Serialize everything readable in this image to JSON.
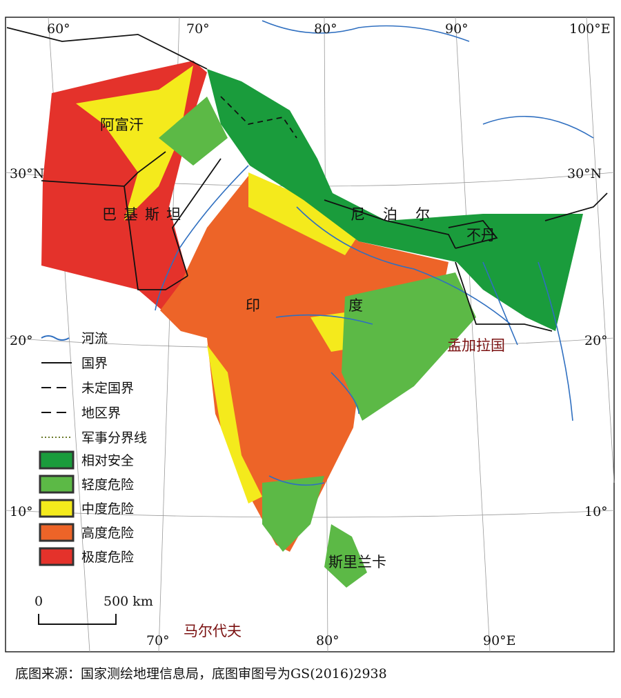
{
  "map": {
    "graticule": {
      "top": [
        "60°",
        "70°",
        "80°",
        "90°",
        "100°E"
      ],
      "left": [
        "30°N",
        "20°",
        "10°"
      ],
      "right": [
        "30°N",
        "20°",
        "10°"
      ],
      "bottom": [
        "70°",
        "80°",
        "90°E"
      ]
    },
    "countries": [
      "阿富汗",
      "巴基斯坦",
      "印度",
      "尼泊尔",
      "不丹",
      "孟加拉国",
      "斯里兰卡",
      "马尔代夫"
    ],
    "legend": {
      "lines": [
        "河流",
        "国界",
        "未定国界",
        "地区界",
        "军事分界线"
      ],
      "classes": [
        {
          "label": "相对安全",
          "color": "#1a9c3c"
        },
        {
          "label": "轻度危险",
          "color": "#5cb946"
        },
        {
          "label": "中度危险",
          "color": "#f4ea1c"
        },
        {
          "label": "高度危险",
          "color": "#ed6428"
        },
        {
          "label": "极度危险",
          "color": "#e4322b"
        }
      ]
    },
    "scale_bar": [
      "0",
      "500 km"
    ],
    "source": "底图来源：国家测绘地理信息局，底图审图号为GS(2016)2938"
  }
}
